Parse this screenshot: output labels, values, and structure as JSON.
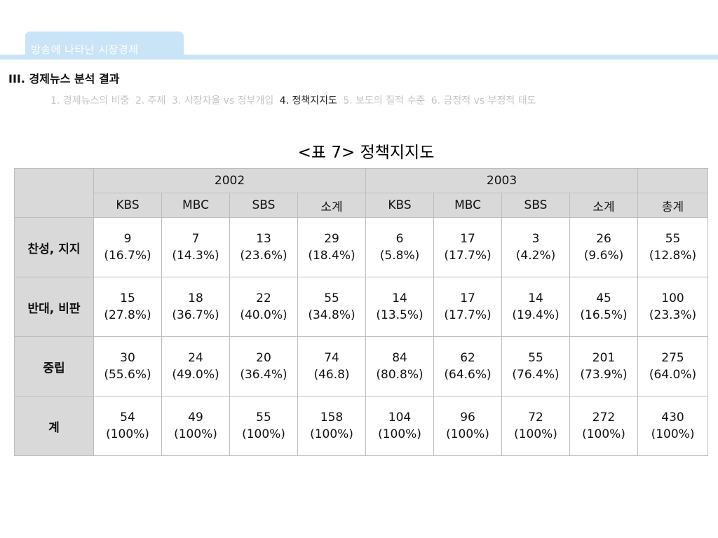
{
  "header": {
    "tab_title": "방송에 나타난 시장경제"
  },
  "section": {
    "title": "III. 경제뉴스 분석 결과"
  },
  "subnav": {
    "items": [
      {
        "label": "1. 경제뉴스의 비중"
      },
      {
        "label": "2. 주제"
      },
      {
        "label": "3. 시장자율 vs 정부개입"
      },
      {
        "label": "4. 정책지지도"
      },
      {
        "label": "5. 보도의 질적 수준"
      },
      {
        "label": "6. 긍정적 vs 부정적 태도"
      }
    ],
    "active_index": 3
  },
  "table": {
    "title": "<표 7> 정책지지도",
    "year_headers": [
      "2002",
      "2003"
    ],
    "col_headers": [
      "KBS",
      "MBC",
      "SBS",
      "소계",
      "KBS",
      "MBC",
      "SBS",
      "소계",
      "총계"
    ],
    "rows": [
      {
        "label": "찬성, 지지",
        "cells": [
          {
            "count": "9",
            "pct": "(16.7%)"
          },
          {
            "count": "7",
            "pct": "(14.3%)"
          },
          {
            "count": "13",
            "pct": "(23.6%)"
          },
          {
            "count": "29",
            "pct": "(18.4%)"
          },
          {
            "count": "6",
            "pct": "(5.8%)"
          },
          {
            "count": "17",
            "pct": "(17.7%)"
          },
          {
            "count": "3",
            "pct": "(4.2%)"
          },
          {
            "count": "26",
            "pct": "(9.6%)"
          },
          {
            "count": "55",
            "pct": "(12.8%)"
          }
        ]
      },
      {
        "label": "반대, 비판",
        "cells": [
          {
            "count": "15",
            "pct": "(27.8%)"
          },
          {
            "count": "18",
            "pct": "(36.7%)"
          },
          {
            "count": "22",
            "pct": "(40.0%)"
          },
          {
            "count": "55",
            "pct": "(34.8%)"
          },
          {
            "count": "14",
            "pct": "(13.5%)"
          },
          {
            "count": "17",
            "pct": "(17.7%)"
          },
          {
            "count": "14",
            "pct": "(19.4%)"
          },
          {
            "count": "45",
            "pct": "(16.5%)"
          },
          {
            "count": "100",
            "pct": "(23.3%)"
          }
        ]
      },
      {
        "label": "중립",
        "cells": [
          {
            "count": "30",
            "pct": "(55.6%)"
          },
          {
            "count": "24",
            "pct": "(49.0%)"
          },
          {
            "count": "20",
            "pct": "(36.4%)"
          },
          {
            "count": "74",
            "pct": "(46.8)"
          },
          {
            "count": "84",
            "pct": "(80.8%)"
          },
          {
            "count": "62",
            "pct": "(64.6%)"
          },
          {
            "count": "55",
            "pct": "(76.4%)"
          },
          {
            "count": "201",
            "pct": "(73.9%)"
          },
          {
            "count": "275",
            "pct": "(64.0%)"
          }
        ]
      },
      {
        "label": "계",
        "cells": [
          {
            "count": "54",
            "pct": "(100%)"
          },
          {
            "count": "49",
            "pct": "(100%)"
          },
          {
            "count": "55",
            "pct": "(100%)"
          },
          {
            "count": "158",
            "pct": "(100%)"
          },
          {
            "count": "104",
            "pct": "(100%)"
          },
          {
            "count": "96",
            "pct": "(100%)"
          },
          {
            "count": "72",
            "pct": "(100%)"
          },
          {
            "count": "272",
            "pct": "(100%)"
          },
          {
            "count": "430",
            "pct": "(100%)"
          }
        ]
      }
    ]
  },
  "colors": {
    "header_accent": "#c9e3f7",
    "table_header_bg": "#d9d9d9",
    "subnav_inactive": "#c4c4c4"
  }
}
